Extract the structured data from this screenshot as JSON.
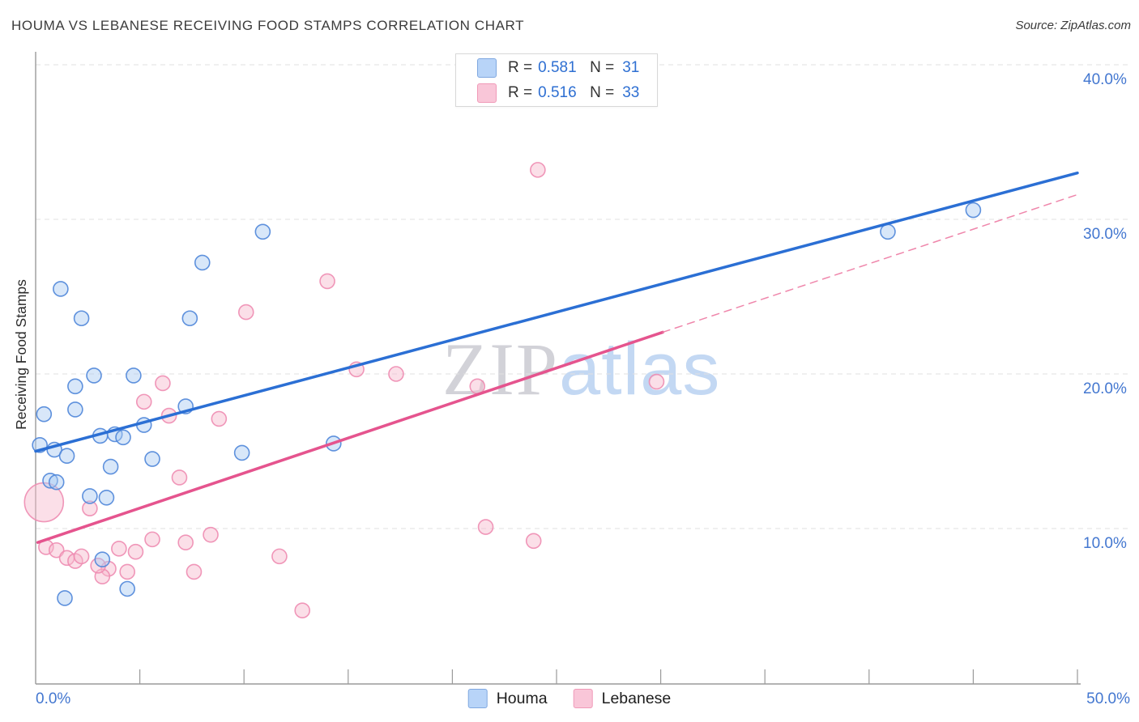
{
  "header": {
    "title": "HOUMA VS LEBANESE RECEIVING FOOD STAMPS CORRELATION CHART",
    "source": "Source: ZipAtlas.com"
  },
  "watermark": {
    "zip": "ZIP",
    "atlas": "atlas"
  },
  "legend_box": {
    "rows": [
      {
        "series": "Houma",
        "r_label": "R =",
        "r_value": "0.581",
        "n_label": "N =",
        "n_value": "31"
      },
      {
        "series": "Lebanese",
        "r_label": "R =",
        "r_value": "0.516",
        "n_label": "N =",
        "n_value": "33"
      }
    ]
  },
  "axes": {
    "y_title": "Receiving Food Stamps",
    "y_tick_labels": [
      "40.0%",
      "30.0%",
      "20.0%",
      "10.0%"
    ],
    "x_tick_left": "0.0%",
    "x_tick_right": "50.0%"
  },
  "bottom_legend": [
    {
      "label": "Houma"
    },
    {
      "label": "Lebanese"
    }
  ],
  "colors": {
    "accent_text_blue": "#2e6fd2",
    "axis_label_blue": "#4377d0",
    "houma_fill": "#a9c9f2",
    "houma_stroke": "#4f86d9",
    "houma_line": "#2b6fd4",
    "lebanese_fill": "#f6b8cd",
    "lebanese_stroke": "#ee8cb1",
    "lebanese_line": "#e5548e",
    "gridline": "#e1e1e1",
    "axis_line": "#9a9a9a"
  },
  "chart_data": {
    "type": "scatter",
    "title": "HOUMA VS LEBANESE RECEIVING FOOD STAMPS CORRELATION CHART",
    "xlabel": "",
    "ylabel": "Receiving Food Stamps",
    "xlim": [
      0,
      50.2
    ],
    "ylim": [
      0,
      40.8
    ],
    "x_axis_format": "percent",
    "y_ticks": [
      10,
      20,
      30,
      40
    ],
    "x_minor_tick_step": 5,
    "grid": "dashed-horizontal",
    "legend_position": "bottom-center",
    "series": [
      {
        "name": "Houma",
        "R": 0.581,
        "N": 31,
        "points": [
          [
            1.2,
            25.5
          ],
          [
            2.2,
            23.6
          ],
          [
            7.4,
            23.6
          ],
          [
            8.0,
            27.2
          ],
          [
            10.9,
            29.2
          ],
          [
            2.8,
            19.9
          ],
          [
            4.7,
            19.9
          ],
          [
            1.9,
            19.2
          ],
          [
            1.9,
            17.7
          ],
          [
            0.4,
            17.4
          ],
          [
            7.2,
            17.9
          ],
          [
            3.1,
            16.0
          ],
          [
            3.8,
            16.1
          ],
          [
            4.2,
            15.9
          ],
          [
            5.2,
            16.7
          ],
          [
            0.2,
            15.4
          ],
          [
            0.9,
            15.1
          ],
          [
            1.5,
            14.7
          ],
          [
            3.6,
            14.0
          ],
          [
            5.6,
            14.5
          ],
          [
            0.7,
            13.1
          ],
          [
            1.0,
            13.0
          ],
          [
            2.6,
            12.1
          ],
          [
            3.4,
            12.0
          ],
          [
            3.2,
            8.0
          ],
          [
            4.4,
            6.1
          ],
          [
            1.4,
            5.5
          ],
          [
            9.9,
            14.9
          ],
          [
            14.3,
            15.5
          ],
          [
            40.9,
            29.2
          ],
          [
            45.0,
            30.6
          ]
        ]
      },
      {
        "name": "Lebanese",
        "R": 0.516,
        "N": 33,
        "points": [
          [
            24.1,
            33.2
          ],
          [
            14.0,
            26.0
          ],
          [
            10.1,
            24.0
          ],
          [
            6.1,
            19.4
          ],
          [
            5.2,
            18.2
          ],
          [
            6.4,
            17.3
          ],
          [
            8.8,
            17.1
          ],
          [
            15.4,
            20.3
          ],
          [
            17.3,
            20.0
          ],
          [
            21.2,
            19.2
          ],
          [
            29.8,
            19.5
          ],
          [
            6.9,
            13.3
          ],
          [
            0.4,
            11.7,
            24
          ],
          [
            2.6,
            11.3
          ],
          [
            0.5,
            8.8
          ],
          [
            1.0,
            8.6
          ],
          [
            1.5,
            8.1
          ],
          [
            1.9,
            7.9
          ],
          [
            2.2,
            8.2
          ],
          [
            3.5,
            7.4
          ],
          [
            3.2,
            6.9
          ],
          [
            4.0,
            8.7
          ],
          [
            4.8,
            8.5
          ],
          [
            4.4,
            7.2
          ],
          [
            5.6,
            9.3
          ],
          [
            7.2,
            9.1
          ],
          [
            8.4,
            9.6
          ],
          [
            7.6,
            7.2
          ],
          [
            11.7,
            8.2
          ],
          [
            12.8,
            4.7
          ],
          [
            21.6,
            10.1
          ],
          [
            23.9,
            9.2
          ],
          [
            3.0,
            7.6
          ]
        ]
      }
    ],
    "trend_lines": [
      {
        "name": "Houma",
        "style": "solid",
        "x": [
          0,
          50
        ],
        "y": [
          15.0,
          33.0
        ]
      },
      {
        "name": "Lebanese",
        "style": "solid",
        "x": [
          0.1,
          30.1
        ],
        "y": [
          9.1,
          22.7
        ]
      },
      {
        "name": "Lebanese-proj",
        "style": "dashed",
        "x": [
          30.1,
          50
        ],
        "y": [
          22.7,
          31.6
        ]
      }
    ]
  }
}
